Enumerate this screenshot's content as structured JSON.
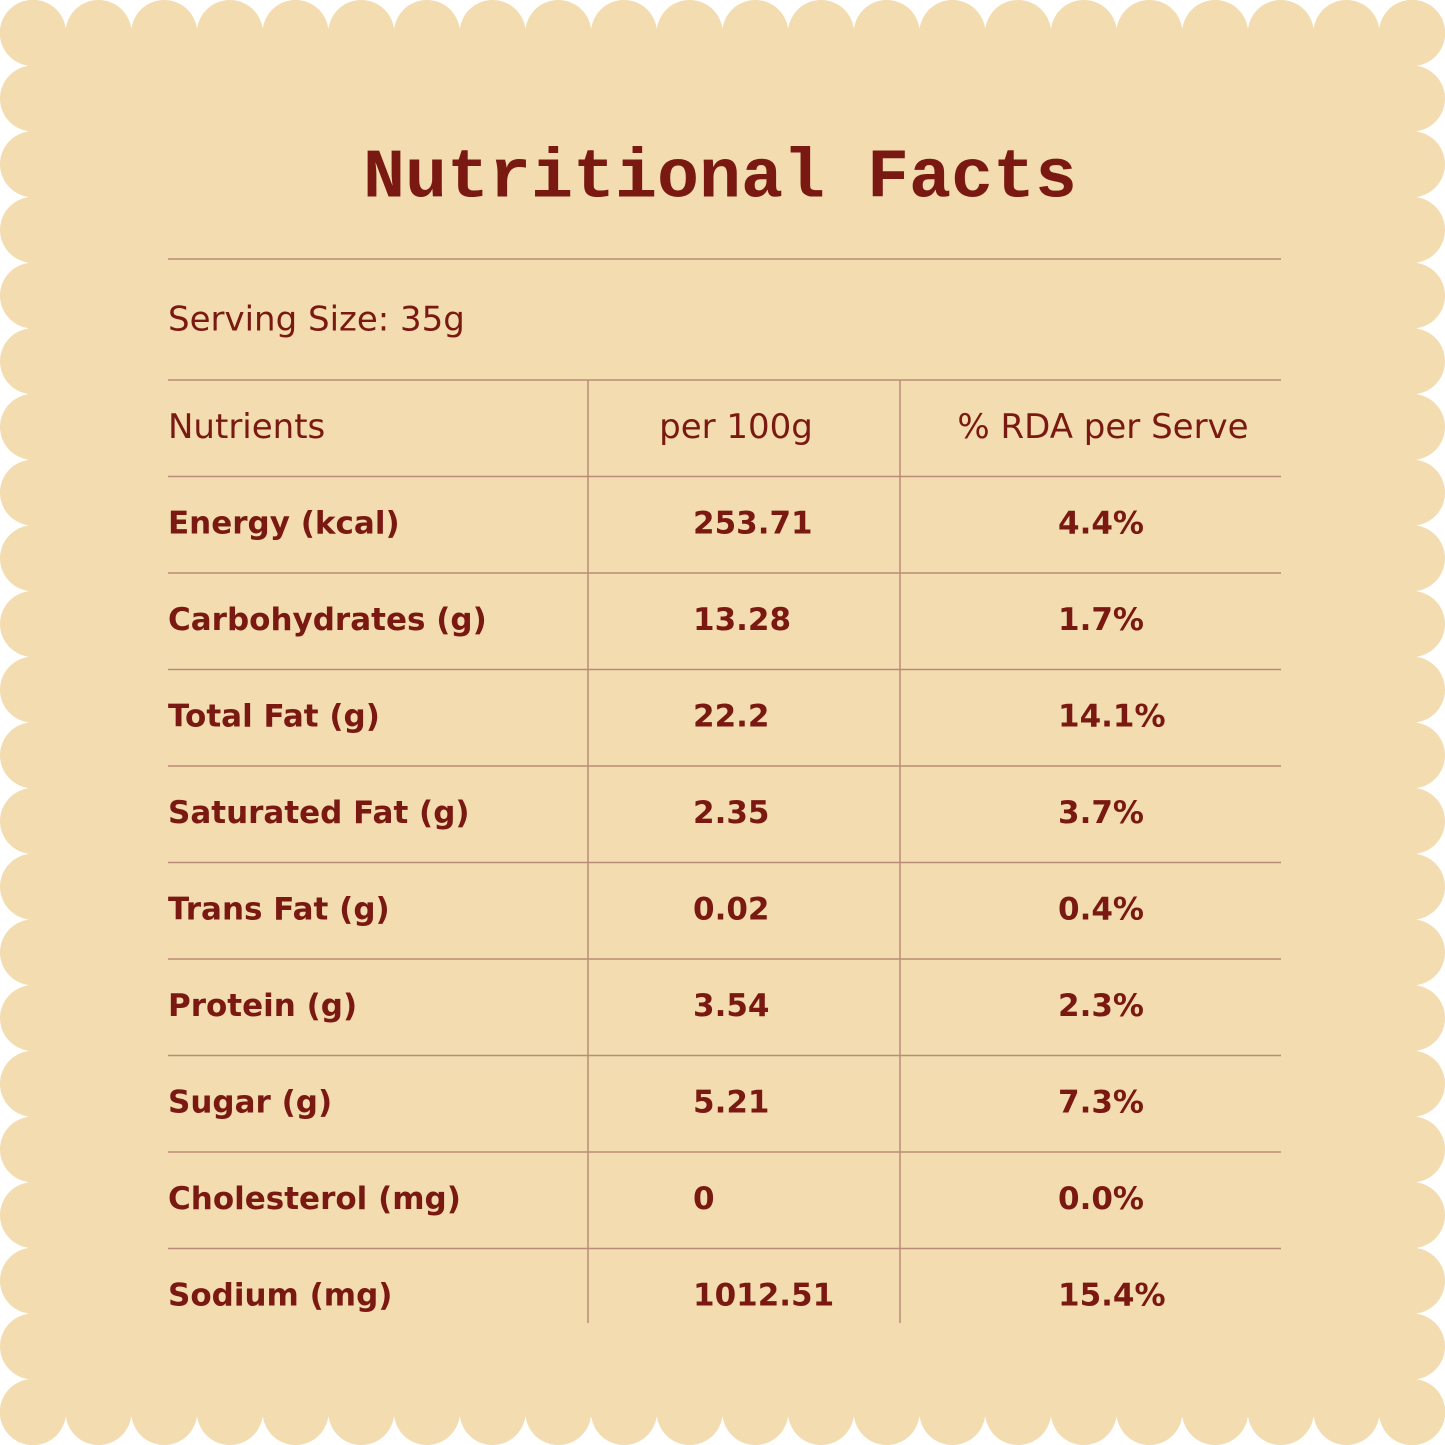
{
  "title": "Nutritional Facts",
  "serving_size": "Serving Size: 35g",
  "table": {
    "header": [
      "Nutrients",
      "per 100g",
      "% RDA per Serve"
    ],
    "rows": [
      [
        "Energy (kcal)",
        "253.71",
        "4.4%"
      ],
      [
        "Carbohydrates (g)",
        "13.28",
        "1.7%"
      ],
      [
        "Total Fat (g)",
        "22.2",
        "14.1%"
      ],
      [
        "Saturated Fat (g)",
        "2.35",
        "3.7%"
      ],
      [
        "Trans Fat (g)",
        "0.02",
        "0.4%"
      ],
      [
        "Protein (g)",
        "3.54",
        "2.3%"
      ],
      [
        "Sugar (g)",
        "5.21",
        "7.3%"
      ],
      [
        "Cholesterol (mg)",
        "0",
        "0.0%"
      ],
      [
        "Sodium (mg)",
        "1012.51",
        "15.4%"
      ]
    ]
  }
}
